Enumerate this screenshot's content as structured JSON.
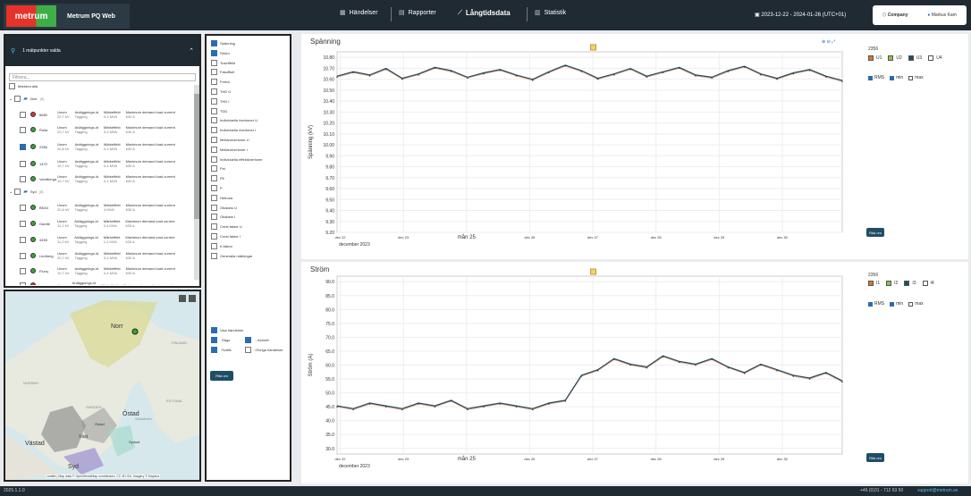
{
  "header": {
    "logo": "metrum",
    "app_title": "Metrum PQ Web",
    "nav": [
      {
        "label": "Händelser",
        "icon": "bars-icon"
      },
      {
        "label": "Rapporter",
        "icon": "document-icon"
      },
      {
        "label": "Långtidsdata",
        "icon": "line-chart-icon"
      },
      {
        "label": "Statistik",
        "icon": "bar-chart-icon"
      }
    ],
    "date_range": "2023-12-22 - 2024-01-26 (UTC+01)",
    "company": "Company",
    "user": "Markus Karn"
  },
  "measure_points": {
    "header": "1 mätpunkter valda",
    "filter_placeholder": "Filtrera...",
    "mark_all": "Markera alla",
    "groups": [
      {
        "name": "Norr",
        "count": "(5)"
      },
      {
        "name": "Syd",
        "count": "(8)"
      }
    ],
    "col_labels": {
      "ustart": "Unom",
      "tag": "Anläggnings-id",
      "effect": "Märkeffekt",
      "demand": "Maximum demand load current",
      "tagval": "Tagging"
    },
    "items": [
      {
        "name": "6680",
        "u": "20,7 kV",
        "eff": "0,4 MVA",
        "dem": "630 A",
        "checked": false,
        "status": "#d33"
      },
      {
        "name": "Rolla",
        "u": "20,7 kV",
        "eff": "0,4 MVA",
        "dem": "630 A",
        "checked": false,
        "status": "#3a3"
      },
      {
        "name": "2356",
        "u": "20,8 kV",
        "eff": "0,4 MVA",
        "dem": "630 A",
        "checked": true,
        "status": "#3a3"
      },
      {
        "name": "1470",
        "u": "10,7 kV",
        "eff": "0,4 MVA",
        "dem": "630 A",
        "checked": false,
        "status": "#3a3"
      },
      {
        "name": "Vandberga",
        "u": "10,7 kV",
        "eff": "0,4 MVA",
        "dem": "630 A",
        "checked": false,
        "status": "#3a3"
      },
      {
        "name": "BN34",
        "u": "20,8 kV",
        "eff": "4 MVA",
        "dem": "630 A",
        "checked": false,
        "status": "#3a3"
      },
      {
        "name": "Gardie",
        "u": "11,1 kV",
        "eff": "0,4 MVA",
        "dem": "630 A",
        "checked": false,
        "status": "#3a3"
      },
      {
        "name": "4455",
        "u": "11,0 kV",
        "eff": "1,2 MVA",
        "dem": "630 A",
        "checked": false,
        "status": "#3a3"
      },
      {
        "name": "Lindberg",
        "u": "20,7 kV",
        "eff": "0,4 MVA",
        "dem": "630 A",
        "checked": false,
        "status": "#3a3"
      },
      {
        "name": "Flurry",
        "u": "10,7 kV",
        "eff": "0,4 MVA",
        "dem": "630 A",
        "checked": false,
        "status": "#3a3"
      },
      {
        "name": "Lova",
        "u": "",
        "eff": "",
        "dem": "",
        "checked": false,
        "status": "#d33"
      }
    ]
  },
  "map": {
    "labels": [
      "Norr",
      "FINLAND",
      "NORWAY",
      "SWEDEN",
      "Östad",
      "Västad",
      "Väst",
      "Syd",
      "Sydost",
      "Östad",
      "ESTONIA",
      "Stockholm"
    ],
    "attribution": "Leaflet | Map data © OpenStreetMap contributors, CC-BY-SA, Imagery © Mapbox"
  },
  "channels": {
    "items": [
      {
        "label": "Spänning",
        "checked": true
      },
      {
        "label": "Ström",
        "checked": true
      },
      {
        "label": "Tuselffekt",
        "checked": false
      },
      {
        "label": "Fasoffset",
        "checked": false
      },
      {
        "label": "Frekvi",
        "checked": false
      },
      {
        "label": "THD U",
        "checked": false
      },
      {
        "label": "THD I",
        "checked": false
      },
      {
        "label": "TDD",
        "checked": false
      },
      {
        "label": "Individuella övertoner U",
        "checked": false
      },
      {
        "label": "Individuella övertoner I",
        "checked": false
      },
      {
        "label": "Mellanövertoner U",
        "checked": false
      },
      {
        "label": "Mellanövertoner I",
        "checked": false
      },
      {
        "label": "Individuella effektövertoner",
        "checked": false
      },
      {
        "label": "Pst",
        "checked": false
      },
      {
        "label": "Plt",
        "checked": false
      },
      {
        "label": "P",
        "checked": false
      },
      {
        "label": "Hetrosa",
        "checked": false
      },
      {
        "label": "Obalans U",
        "checked": false
      },
      {
        "label": "Obalans I",
        "checked": false
      },
      {
        "label": "Crest faktor U",
        "checked": false
      },
      {
        "label": "Crest faktor I",
        "checked": false
      },
      {
        "label": "K-faktor",
        "checked": false
      },
      {
        "label": "Generalla mätningar",
        "checked": false
      }
    ],
    "show_events": "Visa händelser",
    "event_types": [
      {
        "label": "Sägs",
        "checked": true
      },
      {
        "label": "Avbrott",
        "checked": true
      },
      {
        "label": "Svälls",
        "checked": true
      },
      {
        "label": "Övriga händelser",
        "checked": false
      }
    ],
    "plot_button": "Rita om"
  },
  "voltage_chart": {
    "title": "Spänning",
    "mp": "2356",
    "phases": [
      "U1",
      "U2",
      "U3",
      "U4"
    ],
    "stats": [
      "RMS",
      "min",
      "max"
    ],
    "plot_button": "Rita om",
    "phase_colors": [
      "#e8702a",
      "#8bc34a",
      "#1c4e63",
      "#ffffff"
    ]
  },
  "current_chart": {
    "title": "Ström",
    "mp": "2356",
    "phases": [
      "I1",
      "I2",
      "I3",
      "I4"
    ],
    "stats": [
      "RMS",
      "min",
      "max"
    ],
    "plot_button": "Rita om"
  },
  "chart_data": [
    {
      "type": "line",
      "title": "Spänning",
      "ylabel": "Spänning (kV)",
      "ylim": [
        9.2,
        10.85
      ],
      "yticks": [
        "10.80",
        "10.70",
        "10.60",
        "10.50",
        "10.40",
        "10.30",
        "10.20",
        "10.10",
        "10.00",
        "9.90",
        "9.80",
        "9.70",
        "9.60",
        "9.50",
        "9.40",
        "9.30",
        "9.20"
      ],
      "xticks": [
        "dec 22",
        "dec 23",
        "mån 25",
        "dec 26",
        "dec 27",
        "dec 28",
        "dec 29",
        "dec 30"
      ],
      "xsub": "december 2023",
      "series": [
        {
          "name": "U3",
          "values": [
            10.62,
            10.66,
            10.63,
            10.69,
            10.6,
            10.64,
            10.7,
            10.67,
            10.61,
            10.65,
            10.68,
            10.63,
            10.59,
            10.66,
            10.72,
            10.67,
            10.6,
            10.64,
            10.69,
            10.62,
            10.66,
            10.7,
            10.63,
            10.61,
            10.67,
            10.71,
            10.64,
            10.6,
            10.65,
            10.68,
            10.62,
            10.58
          ]
        }
      ]
    },
    {
      "type": "line",
      "title": "Ström",
      "ylabel": "Ström (A)",
      "ylim": [
        28,
        92
      ],
      "yticks": [
        "90.0",
        "85.0",
        "80.0",
        "75.0",
        "70.0",
        "65.0",
        "60.0",
        "55.0",
        "50.0",
        "45.0",
        "40.0",
        "35.0",
        "30.0"
      ],
      "xticks": [
        "dec 22",
        "dec 23",
        "mån 25",
        "dec 26",
        "dec 27",
        "dec 28",
        "dec 29",
        "dec 30"
      ],
      "xsub": "december 2023",
      "series": [
        {
          "name": "I3",
          "values": [
            45,
            44,
            46,
            45,
            44,
            46,
            45,
            47,
            44,
            45,
            46,
            45,
            44,
            46,
            47,
            56,
            58,
            62,
            60,
            59,
            63,
            61,
            60,
            62,
            59,
            57,
            60,
            58,
            56,
            55,
            57,
            54
          ]
        }
      ]
    }
  ],
  "footer": {
    "version": "2025.1.1.0",
    "phone": "+46 (0)31 - 712 63 50",
    "support": "support@metrum.se"
  }
}
